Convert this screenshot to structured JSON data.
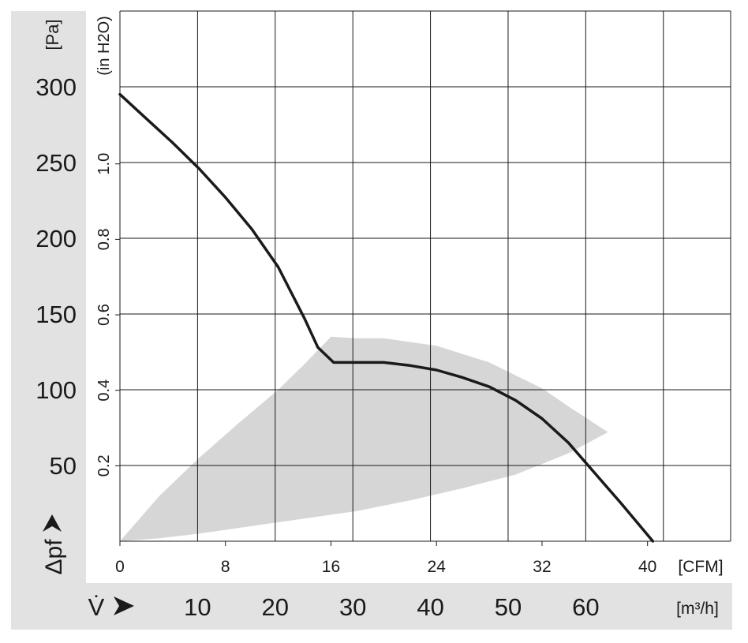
{
  "chart_data": {
    "type": "line",
    "title": "",
    "y_axis_left": {
      "unit": "[Pa]",
      "label": "Δpf",
      "ticks": [
        300,
        250,
        200,
        150,
        100,
        50
      ],
      "range": [
        0,
        350
      ]
    },
    "y_axis_inner": {
      "unit": "(in H2O)",
      "ticks": [
        "1.0",
        "0.8",
        "0.6",
        "0.4",
        "0.2"
      ],
      "tick_values": [
        1.0,
        0.8,
        0.6,
        0.4,
        0.2
      ],
      "pa_per_unit": 249.1
    },
    "x_axis_cfm": {
      "unit": "[CFM]",
      "ticks": [
        "0",
        "8",
        "16",
        "24",
        "32",
        "40"
      ],
      "tick_values": [
        0,
        8,
        16,
        24,
        32,
        40
      ],
      "range": [
        0,
        46.3
      ]
    },
    "x_axis_m3h": {
      "unit": "[m³/h]",
      "label": "V̇",
      "ticks": [
        "10",
        "20",
        "30",
        "40",
        "50",
        "60"
      ],
      "tick_values": [
        10,
        20,
        30,
        40,
        50,
        60
      ],
      "m3h_per_cfm": 1.699
    },
    "grid": true,
    "series": [
      {
        "x": [
          0,
          2,
          4,
          6,
          8,
          10,
          12,
          14,
          15,
          16.2,
          17,
          18,
          20,
          22,
          24,
          26,
          28,
          30,
          32,
          34,
          36,
          38,
          40.4
        ],
        "y": [
          295,
          279,
          263,
          246,
          227,
          206,
          181,
          147,
          128,
          118,
          118,
          118,
          118,
          116,
          113,
          108,
          102,
          93,
          81,
          65,
          45,
          25,
          0
        ],
        "color": "#1a1a1a"
      }
    ],
    "shaded_operating_region": {
      "color": "#d6d6d6",
      "upper_x": [
        0,
        3,
        6,
        9,
        12,
        14,
        16,
        17.9,
        20,
        24,
        28,
        32,
        34,
        37
      ],
      "upper_y": [
        0,
        30,
        55,
        78,
        100,
        117,
        135,
        134,
        134,
        129,
        118,
        101,
        89,
        72
      ],
      "lower_x": [
        37,
        34,
        30,
        26,
        22,
        18,
        14,
        10,
        6,
        3,
        0
      ],
      "lower_y": [
        72,
        58,
        44,
        35,
        27,
        20,
        15,
        10,
        5,
        2,
        0
      ]
    }
  }
}
